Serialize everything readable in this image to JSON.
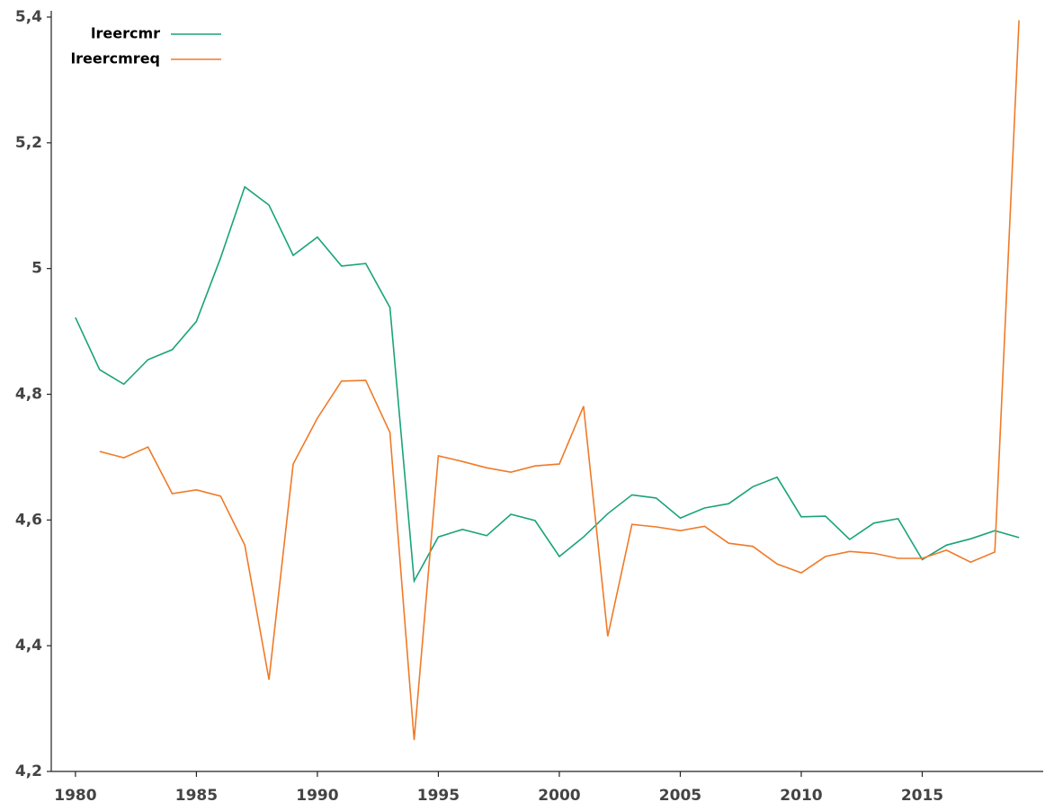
{
  "chart_data": {
    "type": "line",
    "x": [
      1980,
      1981,
      1982,
      1983,
      1984,
      1985,
      1986,
      1987,
      1988,
      1989,
      1990,
      1991,
      1992,
      1993,
      1994,
      1995,
      1996,
      1997,
      1998,
      1999,
      2000,
      2001,
      2002,
      2003,
      2004,
      2005,
      2006,
      2007,
      2008,
      2009,
      2010,
      2011,
      2012,
      2013,
      2014,
      2015,
      2016,
      2017,
      2018,
      2019
    ],
    "series": [
      {
        "name": "lreercmr",
        "color": "#1aa37a",
        "values": [
          4.922,
          4.839,
          4.816,
          4.855,
          4.871,
          4.916,
          5.017,
          5.13,
          5.101,
          5.021,
          5.05,
          5.004,
          5.008,
          4.938,
          4.503,
          4.573,
          4.585,
          4.575,
          4.609,
          4.599,
          4.542,
          4.573,
          4.61,
          4.64,
          4.635,
          4.603,
          4.619,
          4.626,
          4.653,
          4.668,
          4.605,
          4.606,
          4.569,
          4.595,
          4.602,
          4.537,
          4.56,
          4.57,
          4.583,
          4.572
        ]
      },
      {
        "name": "lreercmreq",
        "color": "#f07a28",
        "values": [
          null,
          4.709,
          4.699,
          4.716,
          4.642,
          4.648,
          4.638,
          4.56,
          4.346,
          4.689,
          4.762,
          4.821,
          4.822,
          4.739,
          4.25,
          4.702,
          4.693,
          4.683,
          4.676,
          4.686,
          4.689,
          4.781,
          4.415,
          4.593,
          4.589,
          4.583,
          4.59,
          4.563,
          4.558,
          4.53,
          4.516,
          4.542,
          4.55,
          4.547,
          4.539,
          4.539,
          4.552,
          4.533,
          4.549,
          5.395
        ]
      }
    ],
    "xlim": [
      1979,
      2020
    ],
    "xticks": [
      1980,
      1985,
      1990,
      1995,
      2000,
      2005,
      2010,
      2015
    ],
    "ylim": [
      4.2,
      5.4
    ],
    "yticks": [
      {
        "value": 4.2,
        "label": "4,2"
      },
      {
        "value": 4.4,
        "label": "4,4"
      },
      {
        "value": 4.6,
        "label": "4,6"
      },
      {
        "value": 4.8,
        "label": "4,8"
      },
      5,
      {
        "value": 5.2,
        "label": "5,2"
      },
      {
        "value": 5.4,
        "label": "5,4"
      }
    ],
    "grid": false,
    "legend": "top-left"
  }
}
